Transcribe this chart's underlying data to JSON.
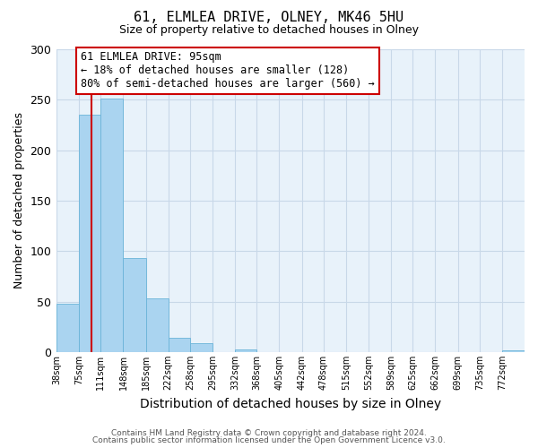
{
  "title": "61, ELMLEA DRIVE, OLNEY, MK46 5HU",
  "subtitle": "Size of property relative to detached houses in Olney",
  "xlabel": "Distribution of detached houses by size in Olney",
  "ylabel": "Number of detached properties",
  "footer_lines": [
    "Contains HM Land Registry data © Crown copyright and database right 2024.",
    "Contains public sector information licensed under the Open Government Licence v3.0."
  ],
  "bin_labels": [
    "38sqm",
    "75sqm",
    "111sqm",
    "148sqm",
    "185sqm",
    "222sqm",
    "258sqm",
    "295sqm",
    "332sqm",
    "368sqm",
    "405sqm",
    "442sqm",
    "478sqm",
    "515sqm",
    "552sqm",
    "589sqm",
    "625sqm",
    "662sqm",
    "699sqm",
    "735sqm",
    "772sqm"
  ],
  "bar_heights": [
    48,
    235,
    251,
    93,
    53,
    14,
    9,
    0,
    3,
    0,
    0,
    0,
    0,
    0,
    0,
    0,
    0,
    0,
    0,
    0,
    2
  ],
  "bar_color": "#aad4f0",
  "bar_edge_color": "#6ab4d8",
  "vline_x": 95,
  "vline_color": "#cc0000",
  "ylim": [
    0,
    300
  ],
  "yticks": [
    0,
    50,
    100,
    150,
    200,
    250,
    300
  ],
  "annotation_box_text": "61 ELMLEA DRIVE: 95sqm\n← 18% of detached houses are smaller (128)\n80% of semi-detached houses are larger (560) →",
  "bin_edges_sqm": [
    38,
    75,
    111,
    148,
    185,
    222,
    258,
    295,
    332,
    368,
    405,
    442,
    478,
    515,
    552,
    589,
    625,
    662,
    699,
    735,
    772,
    809
  ]
}
